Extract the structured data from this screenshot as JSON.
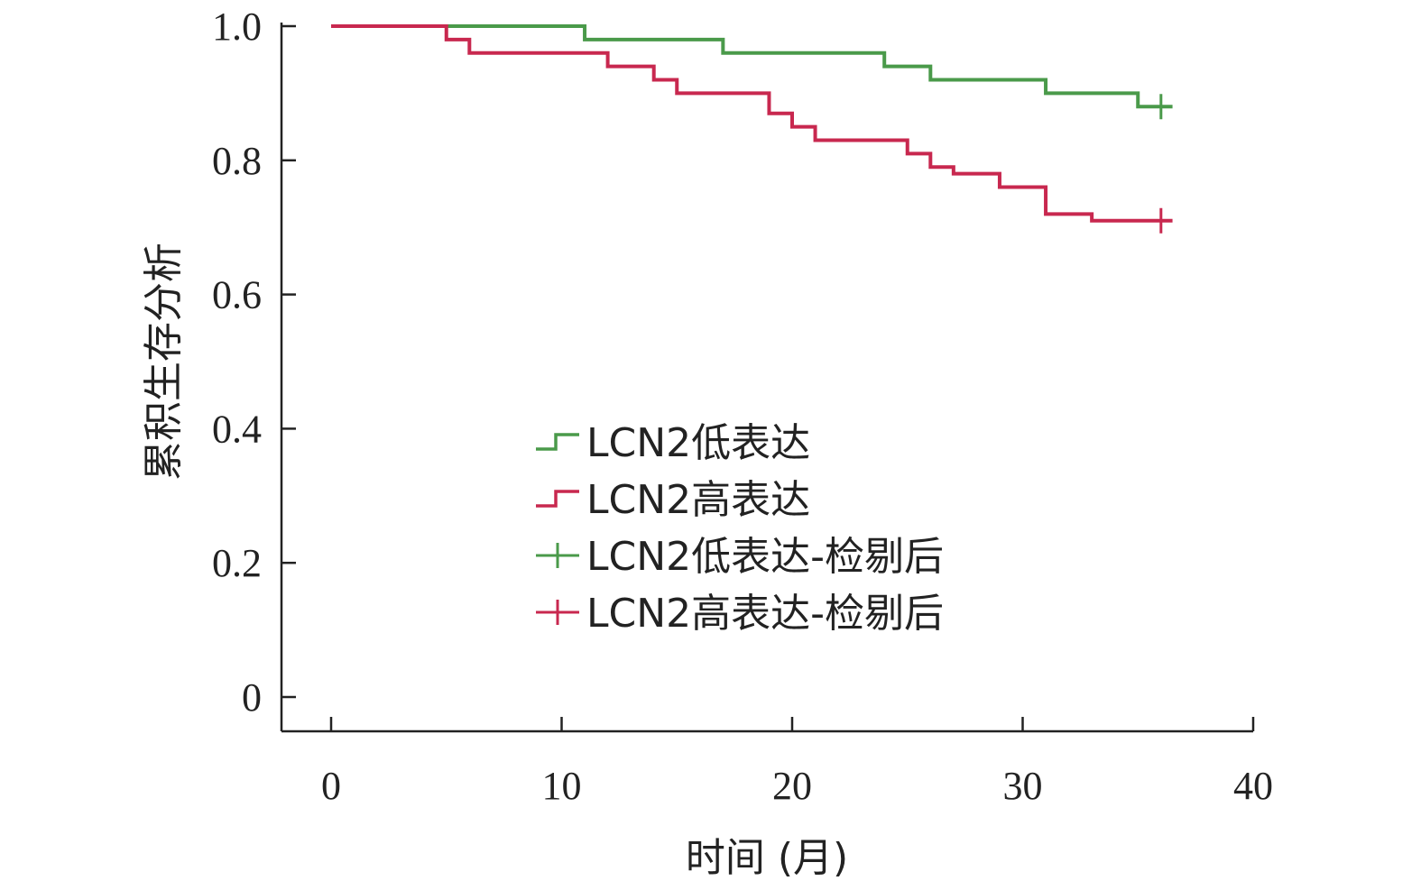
{
  "chart_data": {
    "type": "line",
    "title": "",
    "xlabel": "时间 (月)",
    "ylabel": "累积生存分析",
    "xlim": [
      0,
      40
    ],
    "ylim": [
      0,
      1.0
    ],
    "x_ticks": [
      0,
      10,
      20,
      30,
      40
    ],
    "x_tick_labels": [
      "0",
      "10",
      "20",
      "30",
      "40"
    ],
    "y_ticks": [
      0,
      0.2,
      0.4,
      0.6,
      0.8,
      1.0
    ],
    "y_tick_labels": [
      "0",
      "0.2",
      "0.4",
      "0.6",
      "0.8",
      "1.0"
    ],
    "grid": false,
    "legend_position": "center",
    "series": [
      {
        "name": "LCN2低表达",
        "color": "#4a9a4a",
        "step": true,
        "x": [
          0,
          11,
          17,
          24,
          26,
          31,
          35,
          36.5
        ],
        "y": [
          1.0,
          0.98,
          0.96,
          0.94,
          0.92,
          0.9,
          0.88,
          0.88
        ]
      },
      {
        "name": "LCN2高表达",
        "color": "#c8284f",
        "step": true,
        "x": [
          0,
          5,
          6,
          12,
          14,
          15,
          19,
          20,
          21,
          25,
          26,
          27,
          29,
          31,
          33,
          36.5
        ],
        "y": [
          1.0,
          0.98,
          0.96,
          0.94,
          0.92,
          0.9,
          0.87,
          0.85,
          0.83,
          0.81,
          0.79,
          0.78,
          0.76,
          0.72,
          0.71,
          0.71
        ]
      }
    ],
    "censor_marks": [
      {
        "name": "LCN2低表达-检剔后",
        "color": "#4a9a4a",
        "x": [
          36
        ],
        "y": [
          0.88
        ]
      },
      {
        "name": "LCN2高表达-检剔后",
        "color": "#c8284f",
        "x": [
          36
        ],
        "y": [
          0.71
        ]
      }
    ],
    "legend": [
      {
        "label": "LCN2低表达",
        "kind": "step",
        "color": "#4a9a4a"
      },
      {
        "label": "LCN2高表达",
        "kind": "step",
        "color": "#c8284f"
      },
      {
        "label": "LCN2低表达-检剔后",
        "kind": "censor",
        "color": "#4a9a4a"
      },
      {
        "label": "LCN2高表达-检剔后",
        "kind": "censor",
        "color": "#c8284f"
      }
    ]
  }
}
